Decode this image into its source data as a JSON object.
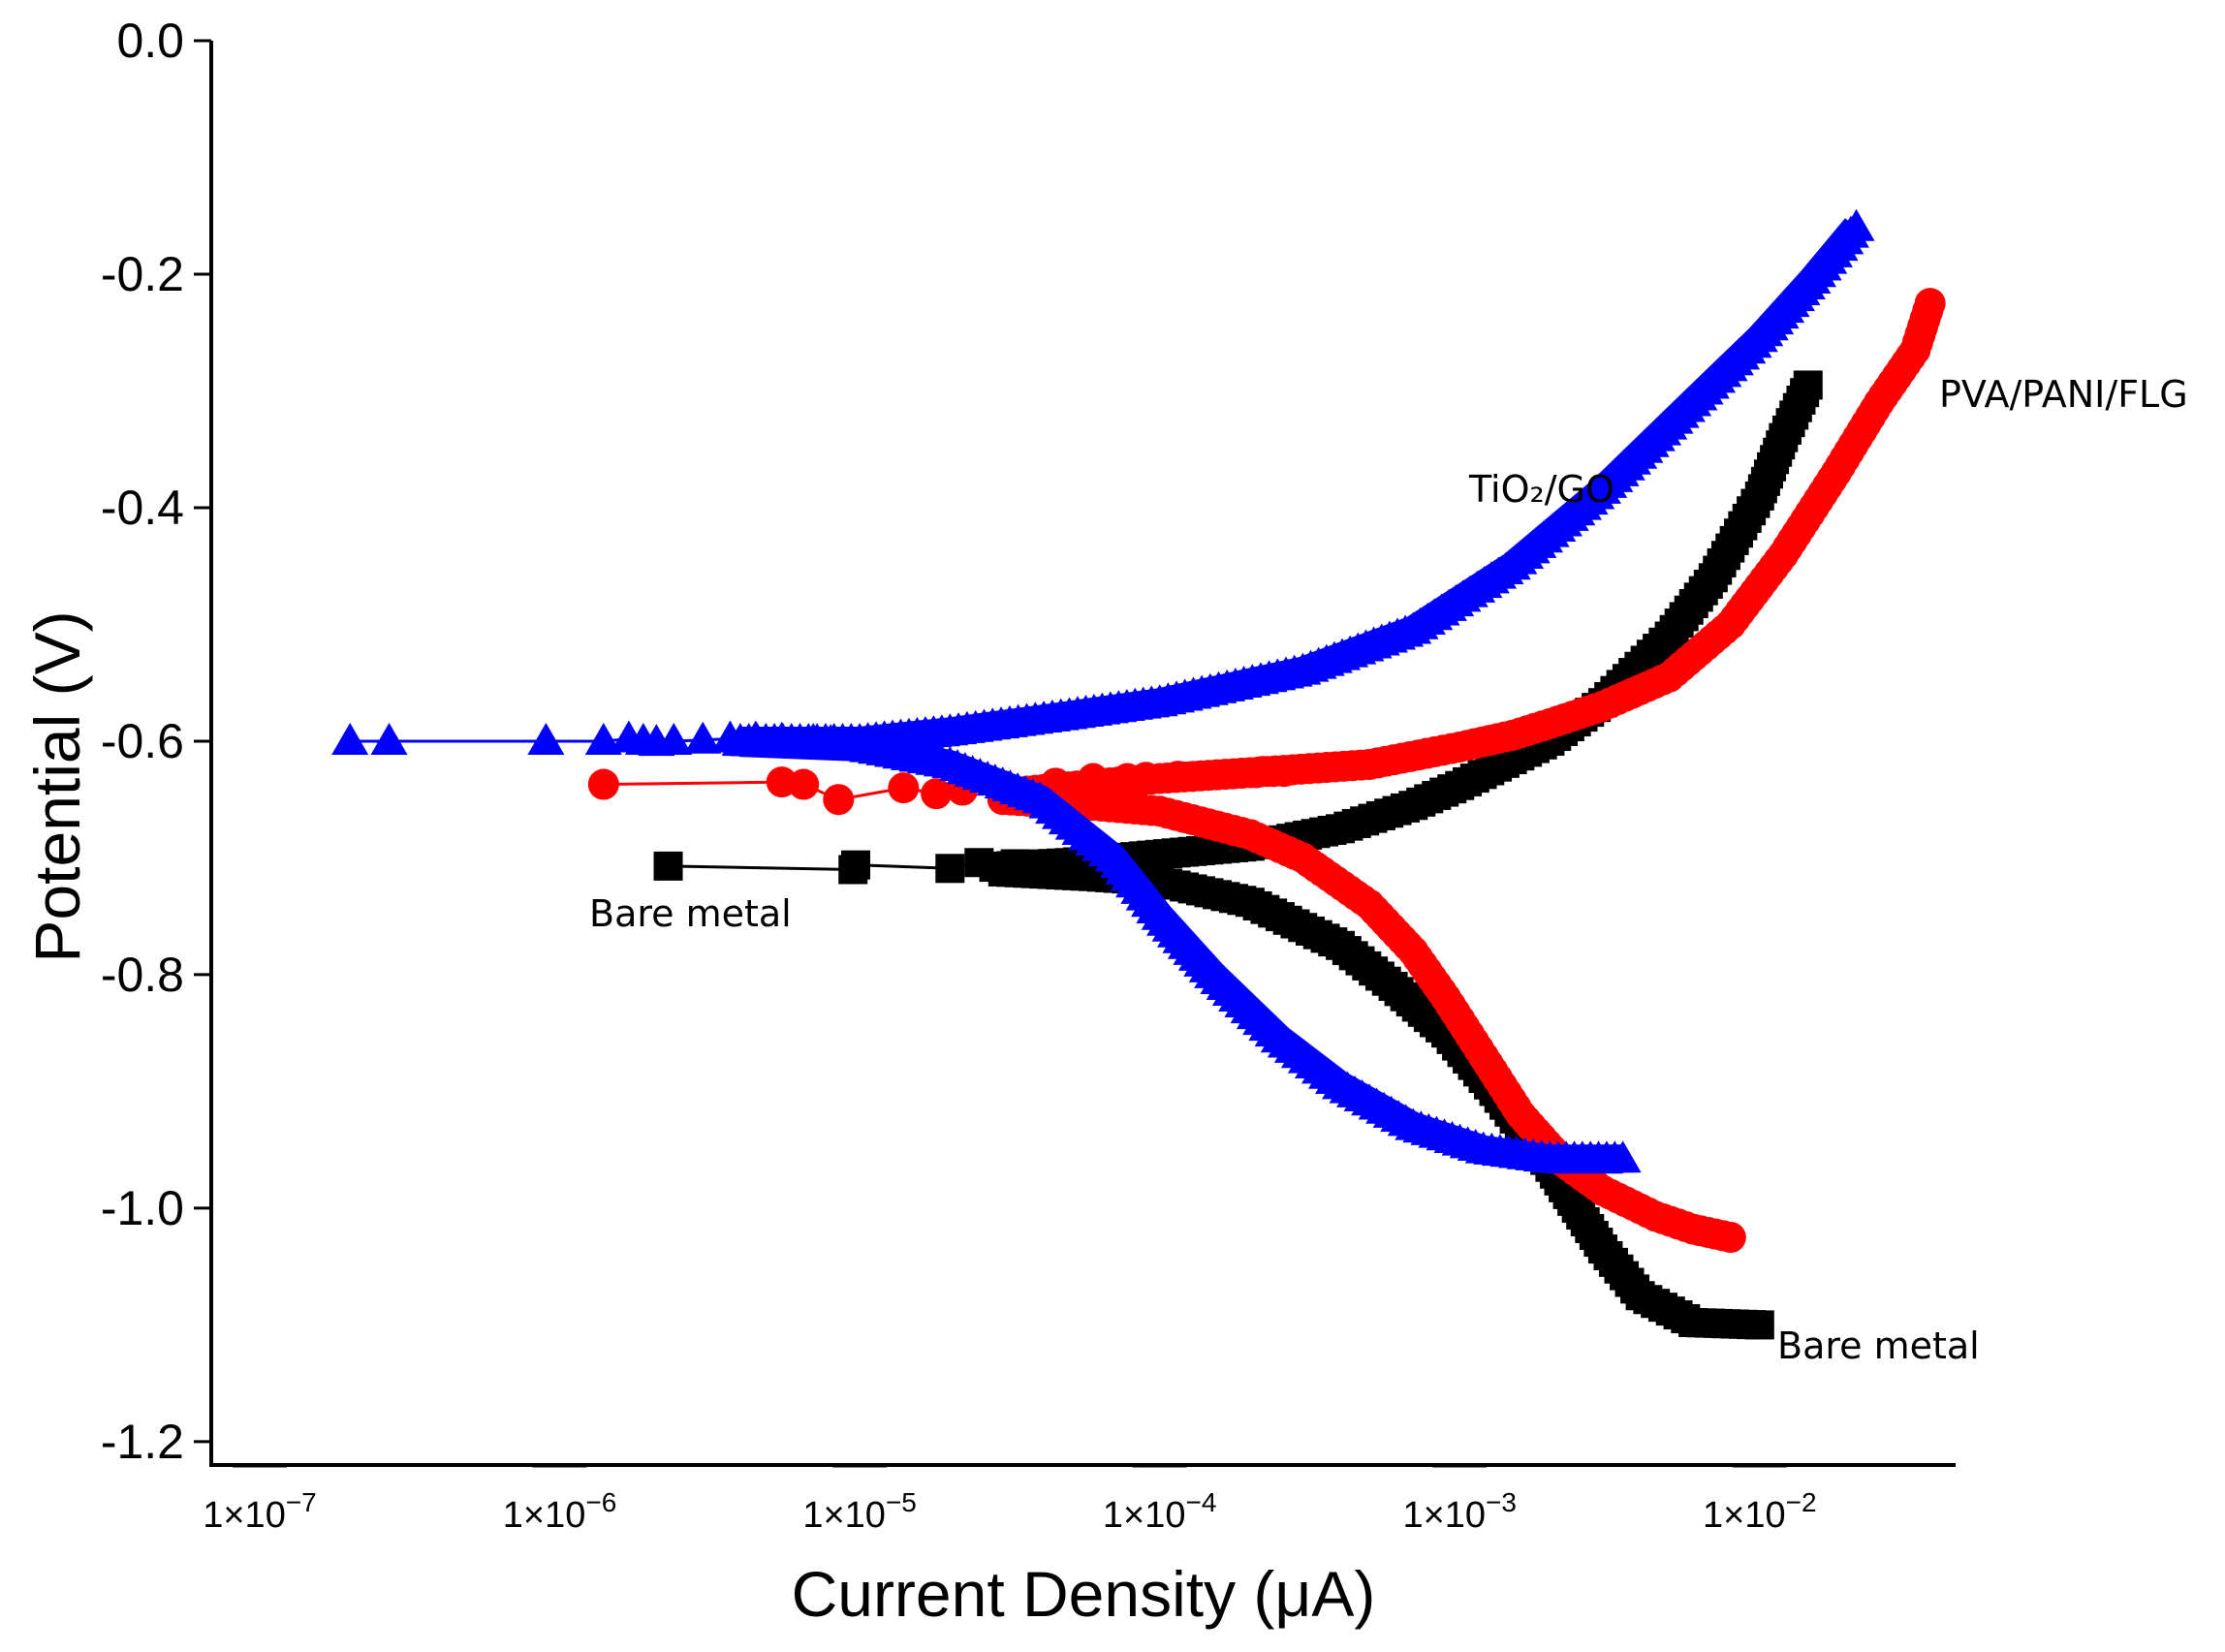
{
  "chart_data": {
    "type": "scatter",
    "title": "",
    "xlabel": "Current Density (μA)",
    "ylabel": "Potential (V)",
    "xscale": "log",
    "xlim": [
      1e-07,
      0.045
    ],
    "ylim": [
      -1.22,
      0.0
    ],
    "grid": false,
    "x_ticks": [
      {
        "value": 1e-07,
        "base": "1×10",
        "exp": "−7"
      },
      {
        "value": 1e-06,
        "base": "1×10",
        "exp": "−6"
      },
      {
        "value": 1e-05,
        "base": "1×10",
        "exp": "−5"
      },
      {
        "value": 0.0001,
        "base": "1×10",
        "exp": "−4"
      },
      {
        "value": 0.001,
        "base": "1×10",
        "exp": "−3"
      },
      {
        "value": 0.01,
        "base": "1×10",
        "exp": "−2"
      }
    ],
    "y_ticks": [
      {
        "value": 0.0,
        "label": "0.0"
      },
      {
        "value": -0.2,
        "label": "-0.2"
      },
      {
        "value": -0.4,
        "label": "-0.4"
      },
      {
        "value": -0.6,
        "label": "-0.6"
      },
      {
        "value": -0.8,
        "label": "-0.8"
      },
      {
        "value": -1.0,
        "label": "-1.0"
      },
      {
        "value": -1.2,
        "label": "-1.2"
      }
    ],
    "series": [
      {
        "name": "Bare metal",
        "color": "#000000",
        "marker": "square",
        "anodic": [
          [
            3e-05,
            -0.707
          ],
          [
            5e-05,
            -0.704
          ],
          [
            0.0001,
            -0.697
          ],
          [
            0.0002,
            -0.69
          ],
          [
            0.0004,
            -0.675
          ],
          [
            0.0007,
            -0.655
          ],
          [
            0.001,
            -0.638
          ],
          [
            0.002,
            -0.6
          ],
          [
            0.003,
            -0.567
          ],
          [
            0.005,
            -0.51
          ],
          [
            0.007,
            -0.46
          ],
          [
            0.01,
            -0.39
          ],
          [
            0.012,
            -0.34
          ],
          [
            0.0145,
            -0.295
          ]
        ],
        "cathodic": [
          [
            3e-05,
            -0.712
          ],
          [
            6e-05,
            -0.716
          ],
          [
            0.0001,
            -0.72
          ],
          [
            0.0002,
            -0.738
          ],
          [
            0.0004,
            -0.775
          ],
          [
            0.0006,
            -0.81
          ],
          [
            0.0009,
            -0.85
          ],
          [
            0.0013,
            -0.9
          ],
          [
            0.002,
            -0.965
          ],
          [
            0.003,
            -1.035
          ],
          [
            0.004,
            -1.075
          ],
          [
            0.006,
            -1.098
          ],
          [
            0.01,
            -1.1
          ]
        ],
        "low_points": [
          [
            2.3e-06,
            -0.707
          ],
          [
            9.5e-06,
            -0.71
          ],
          [
            9.7e-06,
            -0.706
          ],
          [
            2e-05,
            -0.709
          ],
          [
            2.5e-05,
            -0.704
          ],
          [
            2.8e-05,
            -0.708
          ],
          [
            3.3e-05,
            -0.705
          ],
          [
            3.8e-05,
            -0.709
          ],
          [
            4.3e-05,
            -0.706
          ],
          [
            5e-05,
            -0.707
          ]
        ]
      },
      {
        "name": "PVA/PANI/FLG",
        "color": "#ff0000",
        "marker": "circle",
        "anodic": [
          [
            3e-05,
            -0.645
          ],
          [
            6e-05,
            -0.637
          ],
          [
            0.0001,
            -0.632
          ],
          [
            0.0002,
            -0.627
          ],
          [
            0.0005,
            -0.62
          ],
          [
            0.001,
            -0.605
          ],
          [
            0.0015,
            -0.595
          ],
          [
            0.002,
            -0.585
          ],
          [
            0.003,
            -0.57
          ],
          [
            0.005,
            -0.545
          ],
          [
            0.008,
            -0.5
          ],
          [
            0.012,
            -0.44
          ],
          [
            0.018,
            -0.37
          ],
          [
            0.025,
            -0.31
          ],
          [
            0.033,
            -0.265
          ],
          [
            0.037,
            -0.225
          ]
        ],
        "cathodic": [
          [
            3e-05,
            -0.65
          ],
          [
            6e-05,
            -0.655
          ],
          [
            0.0001,
            -0.66
          ],
          [
            0.0002,
            -0.68
          ],
          [
            0.0003,
            -0.7
          ],
          [
            0.0005,
            -0.74
          ],
          [
            0.0007,
            -0.78
          ],
          [
            0.0009,
            -0.82
          ],
          [
            0.0012,
            -0.87
          ],
          [
            0.0016,
            -0.92
          ],
          [
            0.0022,
            -0.96
          ],
          [
            0.003,
            -0.985
          ],
          [
            0.0045,
            -1.007
          ],
          [
            0.006,
            -1.018
          ],
          [
            0.008,
            -1.025
          ]
        ],
        "low_points": [
          [
            1.4e-06,
            -0.637
          ],
          [
            5.5e-06,
            -0.635
          ],
          [
            6.5e-06,
            -0.637
          ],
          [
            8.5e-06,
            -0.65
          ],
          [
            1.4e-05,
            -0.64
          ],
          [
            1.8e-05,
            -0.645
          ],
          [
            2.2e-05,
            -0.642
          ],
          [
            3e-05,
            -0.638
          ],
          [
            4.5e-05,
            -0.636
          ],
          [
            6e-05,
            -0.632
          ],
          [
            7.8e-05,
            -0.632
          ],
          [
            9e-05,
            -0.631
          ],
          [
            0.000115,
            -0.63
          ],
          [
            0.00021,
            -0.627
          ],
          [
            0.00022,
            -0.626
          ],
          [
            0.00024,
            -0.626
          ],
          [
            0.00026,
            -0.626
          ]
        ]
      },
      {
        "name": "TiO₂/GO",
        "color": "#0000ff",
        "marker": "triangle",
        "anodic": [
          [
            4e-06,
            -0.6
          ],
          [
            1e-05,
            -0.6
          ],
          [
            2e-05,
            -0.592
          ],
          [
            5e-05,
            -0.578
          ],
          [
            0.0001,
            -0.567
          ],
          [
            0.0003,
            -0.54
          ],
          [
            0.0007,
            -0.505
          ],
          [
            0.0015,
            -0.45
          ],
          [
            0.003,
            -0.385
          ],
          [
            0.006,
            -0.31
          ],
          [
            0.01,
            -0.255
          ],
          [
            0.015,
            -0.205
          ],
          [
            0.021,
            -0.16
          ]
        ],
        "cathodic": [
          [
            4e-06,
            -0.601
          ],
          [
            1e-05,
            -0.605
          ],
          [
            2e-05,
            -0.62
          ],
          [
            4e-05,
            -0.65
          ],
          [
            7e-05,
            -0.7
          ],
          [
            0.0001,
            -0.75
          ],
          [
            0.00015,
            -0.8
          ],
          [
            0.00025,
            -0.855
          ],
          [
            0.0004,
            -0.895
          ],
          [
            0.0007,
            -0.93
          ],
          [
            0.0012,
            -0.95
          ],
          [
            0.002,
            -0.958
          ],
          [
            0.0035,
            -0.958
          ]
        ],
        "low_points": [
          [
            2e-07,
            -0.6
          ],
          [
            2.7e-07,
            -0.6
          ],
          [
            9e-07,
            -0.6
          ],
          [
            1.4e-06,
            -0.6
          ],
          [
            1.7e-06,
            -0.598
          ],
          [
            1.9e-06,
            -0.6
          ],
          [
            2.1e-06,
            -0.601
          ],
          [
            2.4e-06,
            -0.6
          ],
          [
            3e-06,
            -0.599
          ],
          [
            3.7e-06,
            -0.598
          ],
          [
            4.5e-06,
            -0.598
          ],
          [
            5.5e-06,
            -0.599
          ],
          [
            7e-06,
            -0.6
          ],
          [
            8e-06,
            -0.601
          ]
        ]
      }
    ],
    "annotations": [
      {
        "label": "Bare metal",
        "pos": "left-below-black"
      },
      {
        "label": "Bare metal",
        "pos": "right-end-black"
      },
      {
        "label": "PVA/PANI/FLG",
        "pos": "right-end-red"
      },
      {
        "label": "TiO₂/GO",
        "pos": "upper-blue"
      }
    ]
  }
}
